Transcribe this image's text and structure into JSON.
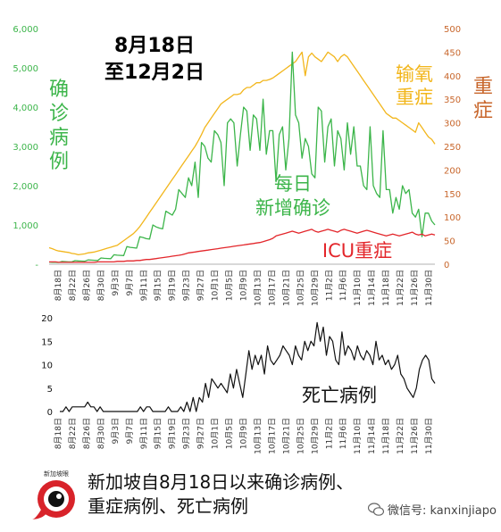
{
  "chart_data": [
    {
      "type": "line",
      "title_line1": "8月18日",
      "title_line2": "至12月2日",
      "x_ticks": [
        "8月18日",
        "8月22日",
        "8月26日",
        "8月30日",
        "9月3日",
        "9月7日",
        "9月11日",
        "9月15日",
        "9月19日",
        "9月23日",
        "9月27日",
        "10月1日",
        "10月5日",
        "10月9日",
        "10月13日",
        "10月17日",
        "10月21日",
        "10月25日",
        "10月29日",
        "11月2日",
        "11月6日",
        "11月10日",
        "11月14日",
        "11月18日",
        "11月22日",
        "11月26日",
        "11月30日"
      ],
      "y_left": {
        "ylim": [
          0,
          6000
        ],
        "ticks": [
          "-",
          "1,000",
          "2,000",
          "3,000",
          "4,000",
          "5,000",
          "6,000"
        ]
      },
      "y_right": {
        "ylim": [
          0,
          500
        ],
        "ticks": [
          "0",
          "50",
          "100",
          "150",
          "200",
          "250",
          "300",
          "350",
          "400",
          "450",
          "500"
        ]
      },
      "side_label_left": [
        "确",
        "诊",
        "病",
        "例"
      ],
      "side_label_right": [
        "重",
        "症"
      ],
      "series": [
        {
          "name_lines": [
            "每日",
            "新增确诊"
          ],
          "axis": "left",
          "color": "#3cb54a",
          "values": [
            55,
            50,
            48,
            45,
            70,
            65,
            60,
            58,
            90,
            85,
            80,
            75,
            110,
            105,
            100,
            95,
            160,
            150,
            145,
            140,
            240,
            230,
            225,
            220,
            450,
            430,
            420,
            410,
            700,
            680,
            650,
            640,
            1000,
            950,
            920,
            900,
            1350,
            1300,
            1250,
            1400,
            1900,
            1800,
            1700,
            2200,
            2000,
            2600,
            1700,
            3100,
            3000,
            2700,
            2600,
            3400,
            3300,
            3100,
            2000,
            3600,
            3700,
            3600,
            2500,
            3300,
            4000,
            3900,
            2900,
            3800,
            3700,
            2900,
            4200,
            2800,
            3400,
            3400,
            2100,
            3300,
            3500,
            2400,
            3200,
            5400,
            3800,
            3600,
            2700,
            3200,
            3000,
            2300,
            2200,
            4000,
            3900,
            2600,
            3500,
            3700,
            2500,
            3400,
            3200,
            2400,
            3600,
            2800,
            3500,
            2500,
            2500,
            2000,
            1900,
            3500,
            2000,
            1800,
            1700,
            3400,
            1900,
            1900,
            1300,
            1700,
            1400,
            2000,
            1800,
            1900,
            1300,
            1200,
            1400,
            700,
            1300,
            1300,
            1100,
            1000
          ]
        },
        {
          "name_lines": [
            "输氧",
            "重症"
          ],
          "axis": "right",
          "color": "#f2b61c",
          "values": [
            35,
            33,
            30,
            28,
            27,
            26,
            25,
            23,
            22,
            20,
            21,
            22,
            24,
            25,
            26,
            28,
            30,
            32,
            34,
            36,
            38,
            40,
            45,
            50,
            55,
            60,
            65,
            72,
            80,
            90,
            100,
            110,
            120,
            130,
            140,
            150,
            160,
            170,
            180,
            190,
            200,
            210,
            220,
            230,
            240,
            250,
            262,
            275,
            290,
            300,
            310,
            320,
            330,
            340,
            345,
            350,
            355,
            360,
            360,
            362,
            370,
            375,
            375,
            380,
            385,
            385,
            390,
            390,
            392,
            395,
            400,
            405,
            410,
            415,
            420,
            425,
            430,
            440,
            450,
            400,
            440,
            448,
            440,
            435,
            430,
            440,
            450,
            445,
            440,
            430,
            440,
            445,
            440,
            430,
            420,
            410,
            400,
            390,
            380,
            370,
            360,
            350,
            340,
            330,
            320,
            315,
            310,
            310,
            305,
            300,
            295,
            290,
            285,
            280,
            300,
            290,
            280,
            270,
            265,
            255
          ]
        },
        {
          "name_lines": [
            "ICU重症"
          ],
          "axis": "right",
          "color": "#e3262b",
          "values": [
            5,
            5,
            5,
            4,
            4,
            4,
            4,
            4,
            4,
            4,
            4,
            4,
            4,
            4,
            4,
            5,
            5,
            5,
            5,
            5,
            5,
            6,
            6,
            6,
            7,
            7,
            7,
            8,
            8,
            9,
            10,
            10,
            11,
            12,
            13,
            14,
            15,
            16,
            17,
            18,
            19,
            20,
            22,
            24,
            25,
            26,
            27,
            28,
            29,
            30,
            31,
            32,
            33,
            34,
            35,
            36,
            37,
            38,
            39,
            40,
            41,
            42,
            43,
            44,
            45,
            46,
            48,
            50,
            52,
            55,
            60,
            62,
            64,
            66,
            68,
            70,
            68,
            66,
            68,
            70,
            72,
            74,
            70,
            68,
            70,
            72,
            74,
            72,
            70,
            68,
            72,
            74,
            72,
            70,
            68,
            66,
            68,
            70,
            72,
            70,
            68,
            66,
            64,
            62,
            60,
            62,
            64,
            62,
            60,
            62,
            64,
            66,
            68,
            64,
            62,
            64,
            60,
            62,
            64,
            62
          ]
        }
      ]
    },
    {
      "type": "line",
      "x_ticks": [
        "8月18日",
        "8月22日",
        "8月26日",
        "8月30日",
        "9月3日",
        "9月7日",
        "9月11日",
        "9月15日",
        "9月19日",
        "9月23日",
        "9月27日",
        "10月1日",
        "10月5日",
        "10月9日",
        "10月13日",
        "10月17日",
        "10月21日",
        "10月25日",
        "10月29日",
        "11月2日",
        "11月6日",
        "11月10日",
        "11月14日",
        "11月18日",
        "11月22日",
        "11月26日",
        "11月30日"
      ],
      "ylim": [
        0,
        20
      ],
      "y_ticks": [
        "0",
        "5",
        "10",
        "15",
        "20"
      ],
      "series": [
        {
          "name": "死亡病例",
          "color": "#111111",
          "values": [
            0,
            0,
            1,
            0,
            1,
            1,
            1,
            1,
            1,
            2,
            1,
            1,
            0,
            1,
            0,
            0,
            0,
            0,
            0,
            0,
            0,
            0,
            0,
            0,
            0,
            0,
            1,
            0,
            1,
            1,
            0,
            0,
            0,
            0,
            0,
            1,
            0,
            0,
            0,
            1,
            0,
            2,
            0,
            3,
            0,
            3,
            2,
            6,
            3,
            7,
            6,
            5,
            6,
            5,
            4,
            8,
            5,
            9,
            6,
            3,
            8,
            13,
            9,
            12,
            10,
            12,
            8,
            14,
            11,
            10,
            11,
            12,
            14,
            13,
            12,
            10,
            14,
            12,
            11,
            15,
            13,
            15,
            14,
            19,
            15,
            18,
            12,
            16,
            15,
            11,
            10,
            17,
            12,
            14,
            13,
            11,
            14,
            12,
            11,
            13,
            12,
            10,
            15,
            11,
            12,
            10,
            11,
            9,
            10,
            12,
            8,
            7,
            5,
            4,
            3,
            5,
            9,
            11,
            12,
            11,
            7,
            6
          ]
        }
      ]
    }
  ],
  "caption": {
    "line1": "新加坡自8月18日以来确诊病例、",
    "line2": "重症病例、死亡病例"
  },
  "logo_text": "新加坡眼",
  "wechat": "微信号: kanxinjiapo",
  "colors": {
    "green": "#3cb54a",
    "orange": "#f2b61c",
    "red": "#e3262b",
    "right_axis": "#c8662b",
    "death": "#111111"
  }
}
